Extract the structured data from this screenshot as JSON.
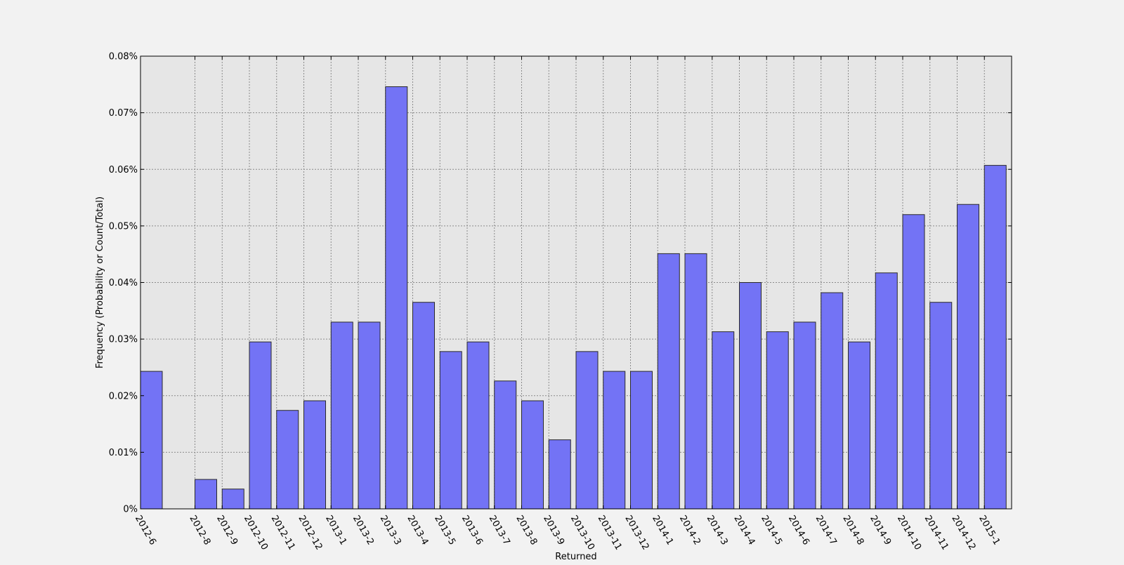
{
  "chart_data": {
    "type": "bar",
    "title": "",
    "xlabel": "Returned",
    "ylabel": "Frequency (Probability or Count/Total)",
    "ylim": [
      0,
      0.08
    ],
    "y_ticks": [
      {
        "value": 0,
        "label": "0%"
      },
      {
        "value": 0.01,
        "label": "0.01%"
      },
      {
        "value": 0.02,
        "label": "0.02%"
      },
      {
        "value": 0.03,
        "label": "0.03%"
      },
      {
        "value": 0.04,
        "label": "0.04%"
      },
      {
        "value": 0.05,
        "label": "0.05%"
      },
      {
        "value": 0.06,
        "label": "0.06%"
      },
      {
        "value": 0.07,
        "label": "0.07%"
      },
      {
        "value": 0.08,
        "label": "0.08%"
      }
    ],
    "x_range": [
      "2012-6",
      "2015-2"
    ],
    "categories": [
      "2012-6",
      "2012-8",
      "2012-9",
      "2012-10",
      "2012-11",
      "2012-12",
      "2013-1",
      "2013-2",
      "2013-3",
      "2013-4",
      "2013-5",
      "2013-6",
      "2013-7",
      "2013-8",
      "2013-9",
      "2013-10",
      "2013-11",
      "2013-12",
      "2014-1",
      "2014-2",
      "2014-3",
      "2014-4",
      "2014-5",
      "2014-6",
      "2014-7",
      "2014-8",
      "2014-9",
      "2014-10",
      "2014-11",
      "2014-12",
      "2015-1"
    ],
    "values": [
      0.0243,
      0.0052,
      0.0035,
      0.0295,
      0.0174,
      0.0191,
      0.033,
      0.033,
      0.0746,
      0.0365,
      0.0278,
      0.0295,
      0.0226,
      0.0191,
      0.0122,
      0.0278,
      0.0243,
      0.0243,
      0.0451,
      0.0451,
      0.0313,
      0.04,
      0.0313,
      0.033,
      0.0382,
      0.0295,
      0.0417,
      0.052,
      0.0365,
      0.0538,
      0.0607
    ],
    "grid": true,
    "colors": {
      "bar_fill": "#7373f5",
      "bar_stroke": "#2a2a2a",
      "plot_background": "#e6e6e6",
      "figure_background": "#f2f2f2",
      "grid": "#8a8a8a"
    }
  }
}
